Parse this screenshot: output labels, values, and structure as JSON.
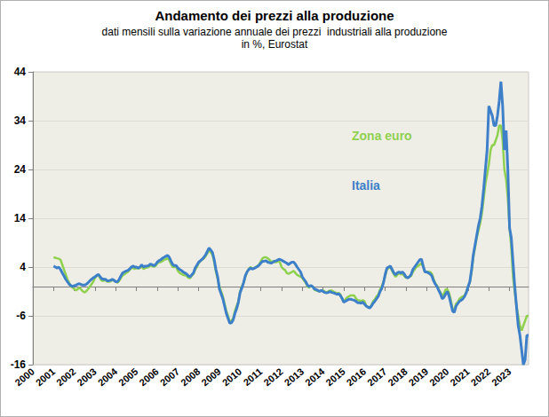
{
  "chart_data": {
    "type": "line",
    "title": "Andamento dei prezzi alla produzione",
    "subtitle": "dati mensili sulla variazione annuale dei prezzi  industriali alla produzione\nin %, Eurostat",
    "categories": [
      "2000",
      null,
      null,
      null,
      null,
      null,
      null,
      null,
      null,
      null,
      null,
      null,
      "2001",
      null,
      null,
      null,
      null,
      null,
      null,
      null,
      null,
      null,
      null,
      null,
      "2002",
      null,
      null,
      null,
      null,
      null,
      null,
      null,
      null,
      null,
      null,
      null,
      "2003",
      null,
      null,
      null,
      null,
      null,
      null,
      null,
      null,
      null,
      null,
      null,
      "2004",
      null,
      null,
      null,
      null,
      null,
      null,
      null,
      null,
      null,
      null,
      null,
      "2005",
      null,
      null,
      null,
      null,
      null,
      null,
      null,
      null,
      null,
      null,
      null,
      "2006",
      null,
      null,
      null,
      null,
      null,
      null,
      null,
      null,
      null,
      null,
      null,
      "2007",
      null,
      null,
      null,
      null,
      null,
      null,
      null,
      null,
      null,
      null,
      null,
      "2008",
      null,
      null,
      null,
      null,
      null,
      null,
      null,
      null,
      null,
      null,
      null,
      "2009",
      null,
      null,
      null,
      null,
      null,
      null,
      null,
      null,
      null,
      null,
      null,
      "2010",
      null,
      null,
      null,
      null,
      null,
      null,
      null,
      null,
      null,
      null,
      null,
      "2011",
      null,
      null,
      null,
      null,
      null,
      null,
      null,
      null,
      null,
      null,
      null,
      "2012",
      null,
      null,
      null,
      null,
      null,
      null,
      null,
      null,
      null,
      null,
      null,
      "2013",
      null,
      null,
      null,
      null,
      null,
      null,
      null,
      null,
      null,
      null,
      null,
      "2014",
      null,
      null,
      null,
      null,
      null,
      null,
      null,
      null,
      null,
      null,
      null,
      "2015",
      null,
      null,
      null,
      null,
      null,
      null,
      null,
      null,
      null,
      null,
      null,
      "2016",
      null,
      null,
      null,
      null,
      null,
      null,
      null,
      null,
      null,
      null,
      null,
      "2017",
      null,
      null,
      null,
      null,
      null,
      null,
      null,
      null,
      null,
      null,
      null,
      "2018",
      null,
      null,
      null,
      null,
      null,
      null,
      null,
      null,
      null,
      null,
      null,
      "2019",
      null,
      null,
      null,
      null,
      null,
      null,
      null,
      null,
      null,
      null,
      null,
      "2020",
      null,
      null,
      null,
      null,
      null,
      null,
      null,
      null,
      null,
      null,
      null,
      "2021",
      null,
      null,
      null,
      null,
      null,
      null,
      null,
      null,
      null,
      null,
      null,
      "2022",
      null,
      null,
      null,
      null,
      null,
      null,
      null,
      null,
      null,
      null,
      null,
      "2023",
      null,
      null,
      null,
      null,
      null,
      null,
      null,
      null,
      null,
      null,
      null
    ],
    "series": [
      {
        "name": "Zona euro",
        "color": "#8fd14f",
        "values": [
          null,
          null,
          null,
          null,
          null,
          null,
          null,
          null,
          null,
          null,
          null,
          null,
          6.0,
          5.9,
          5.8,
          5.7,
          5.5,
          4.5,
          3.5,
          2.5,
          1.5,
          0.8,
          0.0,
          -0.2,
          -0.5,
          -0.8,
          -0.5,
          -0.2,
          -0.6,
          -1.0,
          -1.2,
          -0.9,
          -0.5,
          0.0,
          0.5,
          1.0,
          1.8,
          2.2,
          2.4,
          1.6,
          1.2,
          1.2,
          1.3,
          1.0,
          1.0,
          1.1,
          1.3,
          1.2,
          1.0,
          0.8,
          1.2,
          1.8,
          2.3,
          2.5,
          2.8,
          3.0,
          3.4,
          3.8,
          3.8,
          3.6,
          3.8,
          3.7,
          3.8,
          4.2,
          3.6,
          3.8,
          3.9,
          4.0,
          4.3,
          4.2,
          4.1,
          4.2,
          4.7,
          5.0,
          5.0,
          5.2,
          5.5,
          5.6,
          5.8,
          5.4,
          4.6,
          4.0,
          4.0,
          4.0,
          3.2,
          2.8,
          2.6,
          2.4,
          2.3,
          2.2,
          1.8,
          1.7,
          2.2,
          2.6,
          3.5,
          4.0,
          4.8,
          5.2,
          5.5,
          5.8,
          6.2,
          6.8,
          7.5,
          7.0,
          6.5,
          5.0,
          3.0,
          1.6,
          0.0,
          -1.0,
          -2.0,
          -3.5,
          -5.0,
          -6.0,
          -7.2,
          -7.0,
          -6.5,
          -5.0,
          -4.0,
          -3.0,
          -1.0,
          0.0,
          0.8,
          2.0,
          3.0,
          3.6,
          4.0,
          3.7,
          3.8,
          4.0,
          4.2,
          4.5,
          5.2,
          5.8,
          6.0,
          6.0,
          5.8,
          5.5,
          5.0,
          5.2,
          5.0,
          5.0,
          5.2,
          5.0,
          4.0,
          3.6,
          3.4,
          2.8,
          2.6,
          2.8,
          3.0,
          3.2,
          2.8,
          2.4,
          2.2,
          2.0,
          1.8,
          1.2,
          0.8,
          0.0,
          -0.2,
          0.2,
          0.0,
          -0.6,
          -0.8,
          -0.9,
          -1.0,
          -0.8,
          -0.8,
          -1.0,
          -1.2,
          -1.0,
          -0.8,
          -0.8,
          -1.0,
          -1.2,
          -1.4,
          -1.3,
          -1.6,
          -2.4,
          -3.2,
          -2.6,
          -2.2,
          -2.0,
          -1.8,
          -1.8,
          -1.8,
          -2.4,
          -2.8,
          -2.8,
          -3.0,
          -2.8,
          -3.0,
          -4.0,
          -4.2,
          -4.3,
          -3.8,
          -3.0,
          -2.6,
          -2.0,
          -1.6,
          -0.6,
          0.0,
          1.0,
          2.2,
          3.5,
          3.8,
          4.0,
          3.2,
          2.5,
          2.0,
          2.4,
          2.8,
          2.5,
          2.6,
          2.2,
          1.8,
          1.8,
          2.0,
          2.2,
          3.0,
          3.5,
          4.0,
          4.2,
          4.5,
          4.8,
          4.0,
          3.0,
          3.0,
          3.0,
          3.0,
          2.6,
          1.6,
          0.7,
          0.2,
          -0.6,
          -1.2,
          -1.9,
          -1.5,
          -0.6,
          -0.6,
          -1.3,
          -2.8,
          -4.5,
          -5.0,
          -3.5,
          -3.2,
          -2.5,
          -2.2,
          -2.0,
          -1.8,
          -1.0,
          0.0,
          1.0,
          3.0,
          6.0,
          8.0,
          10.0,
          11.5,
          13.0,
          15.0,
          18.0,
          21.0,
          23.0,
          25.0,
          28.0,
          29.0,
          29.0,
          30.0,
          31.0,
          33.0,
          33.0,
          30.0,
          24.0,
          22.0,
          18.0,
          12.0,
          8.0,
          2.0,
          -1.0,
          -4.0,
          -6.0,
          -8.0,
          -9.0,
          -8.0,
          -7.0,
          -6.0,
          -6.0
        ]
      },
      {
        "name": "Italia",
        "color": "#3d7fc8",
        "values": [
          null,
          null,
          null,
          null,
          null,
          null,
          null,
          null,
          null,
          null,
          null,
          null,
          4.2,
          4.0,
          3.8,
          4.0,
          3.5,
          2.8,
          2.2,
          1.5,
          1.0,
          0.5,
          0.2,
          0.0,
          0.2,
          0.3,
          0.5,
          0.6,
          0.4,
          0.3,
          0.3,
          0.5,
          0.8,
          1.2,
          1.5,
          1.8,
          2.0,
          2.3,
          2.5,
          2.0,
          1.6,
          1.5,
          1.5,
          1.2,
          1.2,
          1.3,
          1.5,
          1.3,
          1.0,
          1.0,
          1.5,
          2.2,
          2.8,
          3.0,
          3.2,
          3.3,
          3.6,
          4.0,
          4.2,
          4.0,
          4.0,
          3.8,
          4.0,
          4.5,
          4.0,
          4.2,
          4.2,
          4.3,
          4.6,
          4.5,
          4.3,
          4.5,
          5.0,
          5.3,
          5.5,
          5.8,
          6.0,
          6.2,
          6.4,
          6.0,
          5.2,
          4.5,
          4.3,
          4.3,
          3.8,
          3.5,
          3.3,
          3.0,
          2.8,
          2.6,
          2.2,
          2.0,
          2.4,
          2.8,
          3.8,
          4.4,
          5.0,
          5.3,
          5.6,
          6.0,
          6.5,
          7.2,
          7.9,
          7.5,
          7.0,
          5.5,
          3.5,
          2.0,
          -0.5,
          -1.5,
          -2.5,
          -4.0,
          -5.5,
          -6.5,
          -7.5,
          -7.4,
          -6.8,
          -5.5,
          -4.5,
          -3.2,
          -1.2,
          -0.3,
          0.8,
          2.2,
          3.0,
          3.5,
          3.8,
          3.6,
          3.7,
          3.9,
          4.1,
          4.4,
          4.8,
          5.2,
          5.2,
          5.3,
          5.0,
          4.9,
          4.8,
          5.0,
          5.2,
          5.3,
          5.5,
          5.6,
          5.4,
          5.2,
          5.0,
          4.8,
          4.5,
          4.8,
          5.0,
          5.0,
          4.6,
          4.0,
          3.5,
          3.0,
          2.0,
          1.5,
          1.0,
          0.3,
          0.0,
          0.2,
          0.0,
          -0.5,
          -0.6,
          -0.8,
          -1.0,
          -0.8,
          -1.0,
          -1.2,
          -1.3,
          -1.2,
          -1.0,
          -1.2,
          -1.3,
          -1.4,
          -1.6,
          -1.5,
          -1.8,
          -2.4,
          -3.2,
          -3.0,
          -2.8,
          -2.6,
          -2.6,
          -2.7,
          -2.8,
          -3.0,
          -3.3,
          -3.3,
          -3.4,
          -3.2,
          -3.6,
          -4.0,
          -4.2,
          -4.4,
          -4.0,
          -3.4,
          -3.0,
          -2.5,
          -2.0,
          -1.0,
          -0.4,
          0.8,
          2.5,
          3.8,
          4.0,
          4.2,
          3.5,
          2.8,
          2.4,
          2.8,
          3.0,
          2.8,
          3.0,
          2.6,
          2.0,
          1.8,
          2.0,
          2.5,
          3.5,
          4.0,
          4.5,
          5.0,
          5.5,
          5.6,
          4.2,
          3.0,
          3.0,
          2.8,
          2.6,
          2.2,
          1.2,
          0.5,
          0.0,
          -0.8,
          -1.5,
          -2.5,
          -2.2,
          -1.5,
          -1.0,
          -2.0,
          -3.5,
          -5.0,
          -5.3,
          -4.0,
          -3.5,
          -3.0,
          -2.8,
          -2.5,
          -2.0,
          -1.2,
          0.0,
          1.0,
          3.5,
          6.5,
          8.5,
          10.5,
          12.5,
          14.0,
          16.5,
          20.0,
          24.0,
          28.0,
          37.0,
          36.0,
          35.0,
          33.0,
          33.0,
          35.0,
          38.0,
          42.0,
          37.0,
          28.0,
          32.0,
          24.0,
          12.0,
          10.0,
          5.0,
          0.0,
          -4.0,
          -8.0,
          -10.0,
          -13.0,
          -16.0,
          -15.0,
          -10.0,
          -10.0
        ]
      }
    ],
    "ylim": [
      -16,
      44
    ],
    "yticks": [
      -16,
      -6,
      4,
      14,
      24,
      34,
      44
    ],
    "grid": true,
    "legend": "upper right"
  }
}
